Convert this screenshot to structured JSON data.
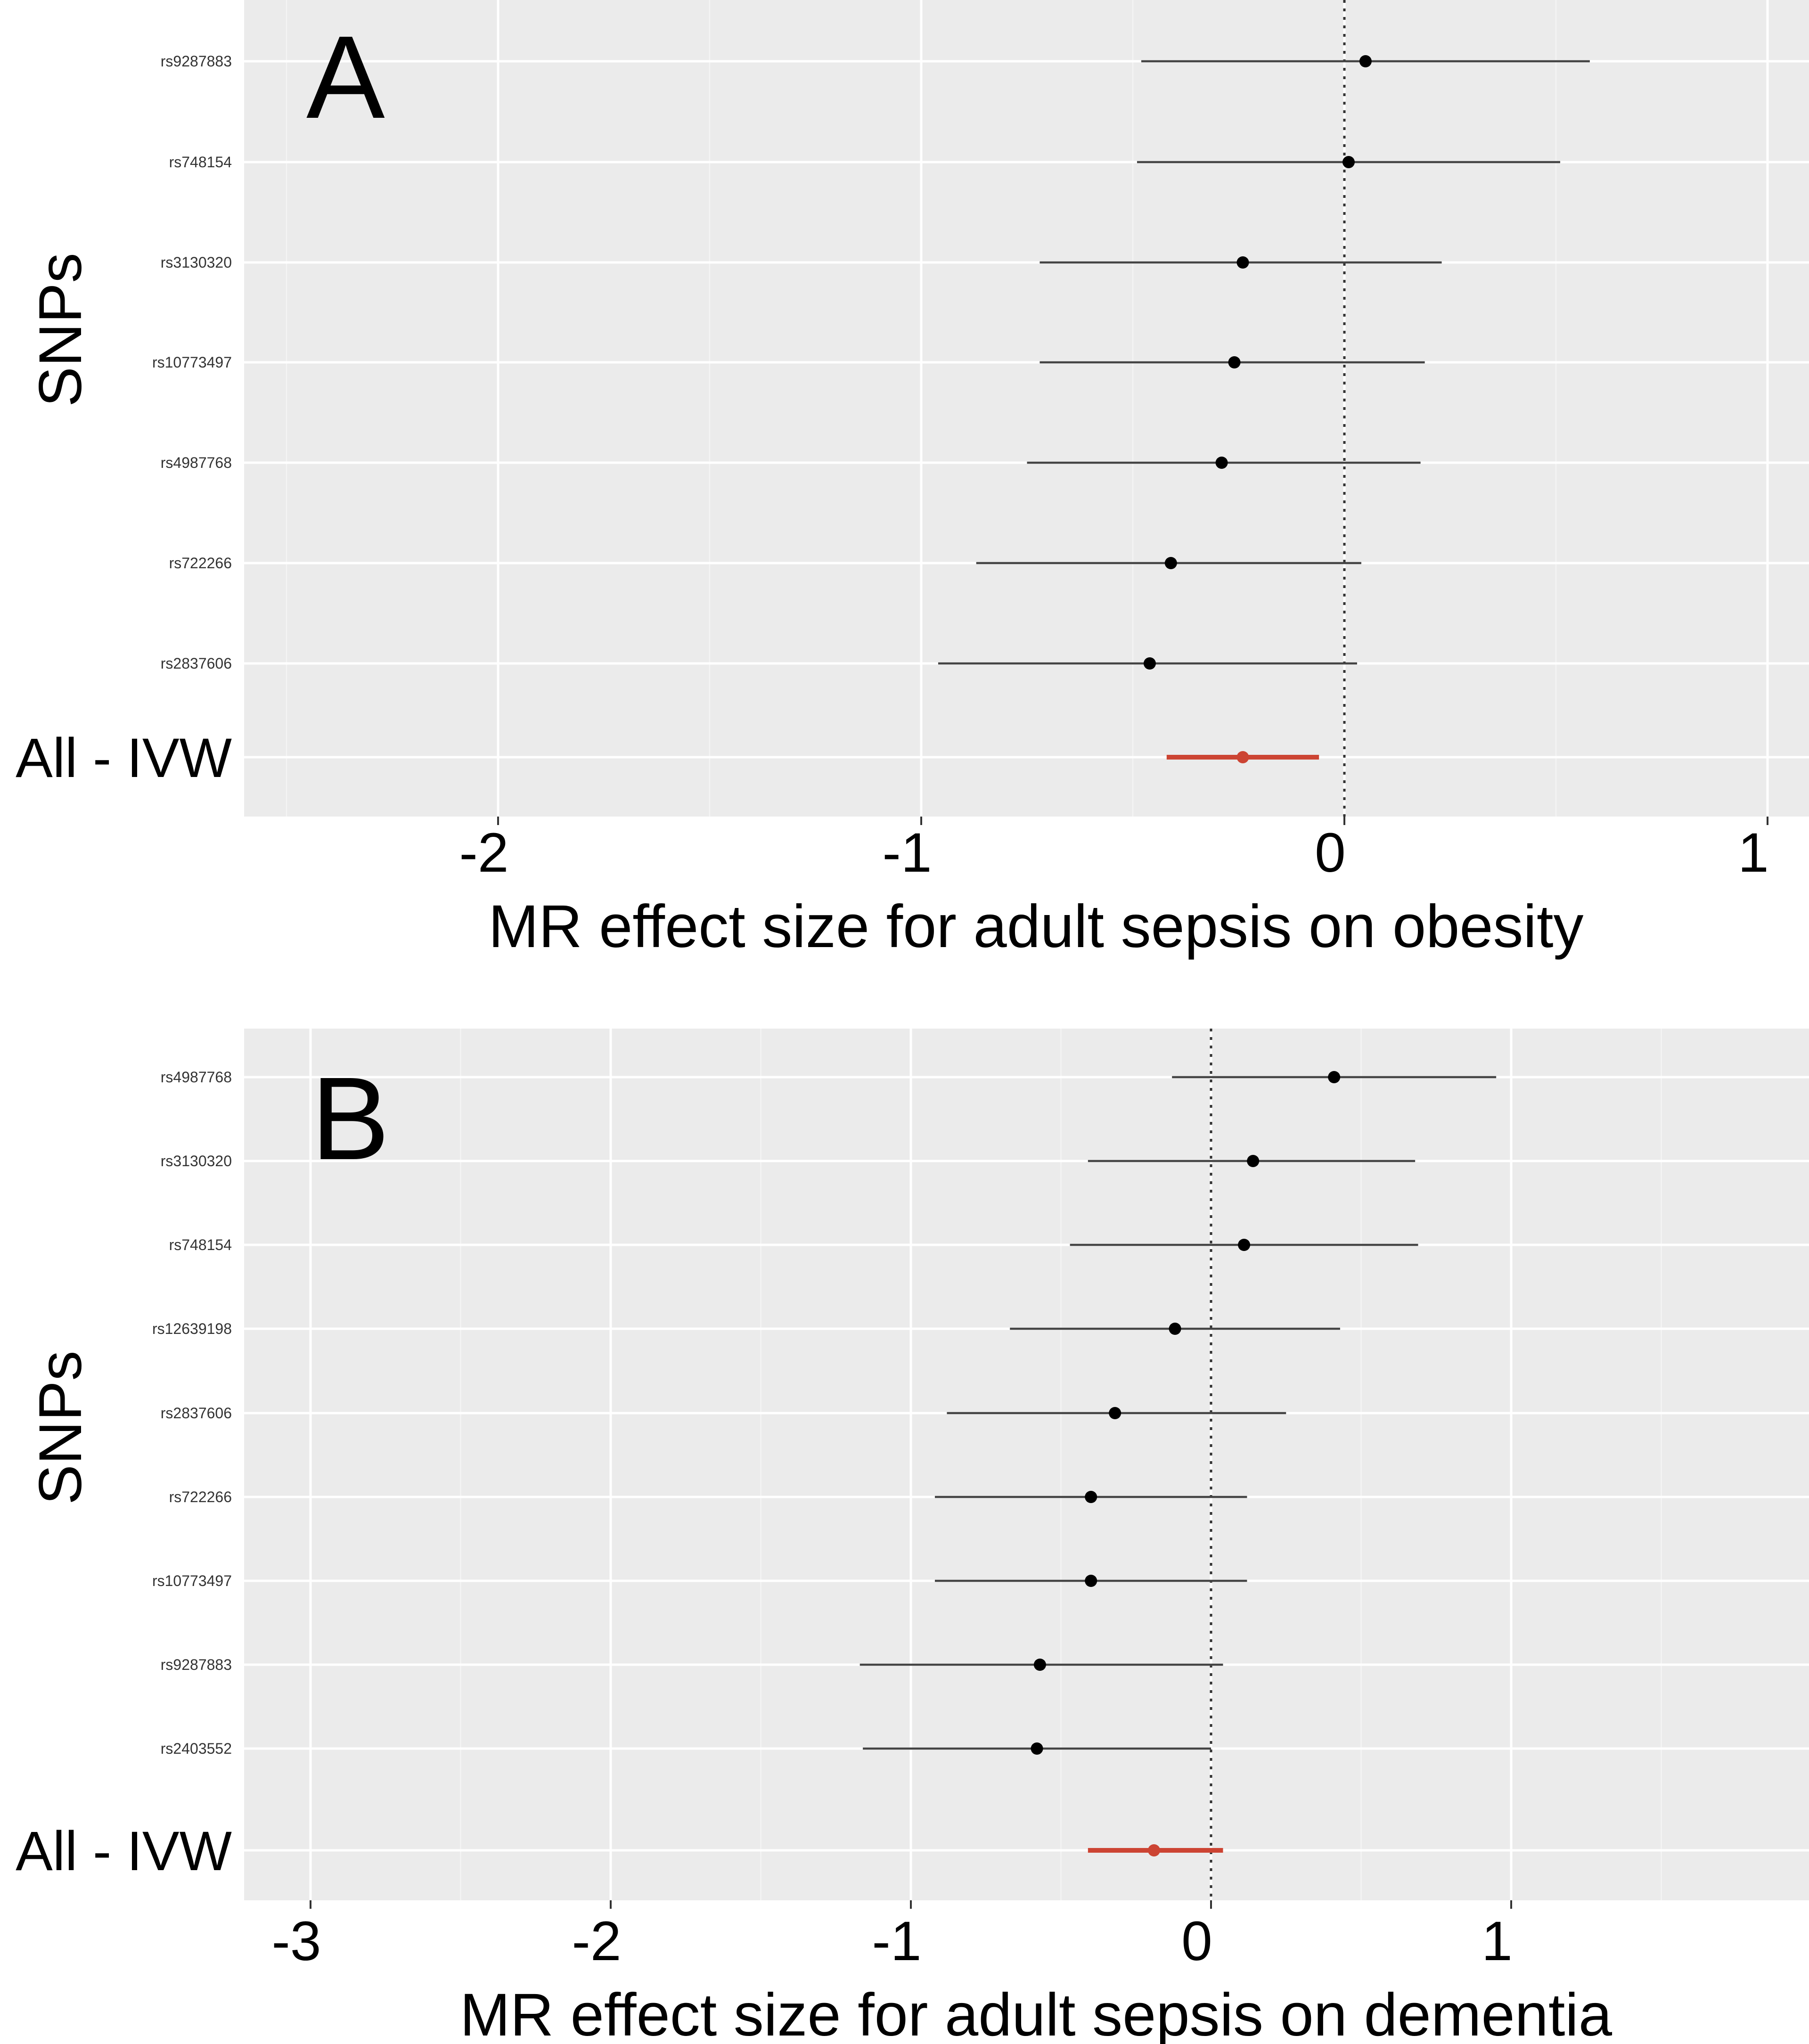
{
  "chart_data": [
    {
      "type": "forest",
      "panel_label": "A",
      "xlabel": "MR effect size for adult sepsis on obesity",
      "ylabel": "SNPs",
      "xlim": [
        -2.6,
        1.1
      ],
      "xticks": [
        -2,
        -1,
        0,
        1
      ],
      "xtick_labels": [
        "-2",
        "-1",
        "0",
        "1"
      ],
      "reference_line": 0,
      "rows": [
        {
          "label": "rs9287883",
          "estimate": 0.05,
          "lower": -0.48,
          "upper": 0.58
        },
        {
          "label": "rs748154",
          "estimate": 0.01,
          "lower": -0.49,
          "upper": 0.51
        },
        {
          "label": "rs3130320",
          "estimate": -0.24,
          "lower": -0.72,
          "upper": 0.23
        },
        {
          "label": "rs10773497",
          "estimate": -0.26,
          "lower": -0.72,
          "upper": 0.19
        },
        {
          "label": "rs4987768",
          "estimate": -0.29,
          "lower": -0.75,
          "upper": 0.18
        },
        {
          "label": "rs722266",
          "estimate": -0.41,
          "lower": -0.87,
          "upper": 0.04
        },
        {
          "label": "rs2837606",
          "estimate": -0.46,
          "lower": -0.96,
          "upper": 0.03
        }
      ],
      "summary": {
        "label": "All - IVW",
        "estimate": -0.24,
        "lower": -0.42,
        "upper": -0.06,
        "color": "#cc4433"
      }
    },
    {
      "type": "forest",
      "panel_label": "B",
      "xlabel": "MR effect size for adult sepsis on dementia",
      "ylabel": "SNPs",
      "xlim": [
        -3.2,
        1.95
      ],
      "xticks": [
        -3,
        -2,
        -1,
        0,
        1
      ],
      "xtick_labels": [
        "-3",
        "-2",
        "-1",
        "0",
        "1"
      ],
      "reference_line": 0,
      "rows": [
        {
          "label": "rs4987768",
          "estimate": 0.41,
          "lower": -0.13,
          "upper": 0.95
        },
        {
          "label": "rs3130320",
          "estimate": 0.14,
          "lower": -0.41,
          "upper": 0.68
        },
        {
          "label": "rs748154",
          "estimate": 0.11,
          "lower": -0.47,
          "upper": 0.69
        },
        {
          "label": "rs12639198",
          "estimate": -0.12,
          "lower": -0.67,
          "upper": 0.43
        },
        {
          "label": "rs2837606",
          "estimate": -0.32,
          "lower": -0.88,
          "upper": 0.25
        },
        {
          "label": "rs722266",
          "estimate": -0.4,
          "lower": -0.92,
          "upper": 0.12
        },
        {
          "label": "rs10773497",
          "estimate": -0.4,
          "lower": -0.92,
          "upper": 0.12
        },
        {
          "label": "rs9287883",
          "estimate": -0.57,
          "lower": -1.17,
          "upper": 0.04
        },
        {
          "label": "rs2403552",
          "estimate": -0.58,
          "lower": -1.16,
          "upper": 0.0
        }
      ],
      "summary": {
        "label": "All - IVW",
        "estimate": -0.19,
        "lower": -0.41,
        "upper": 0.04,
        "color": "#cc4433"
      }
    }
  ]
}
